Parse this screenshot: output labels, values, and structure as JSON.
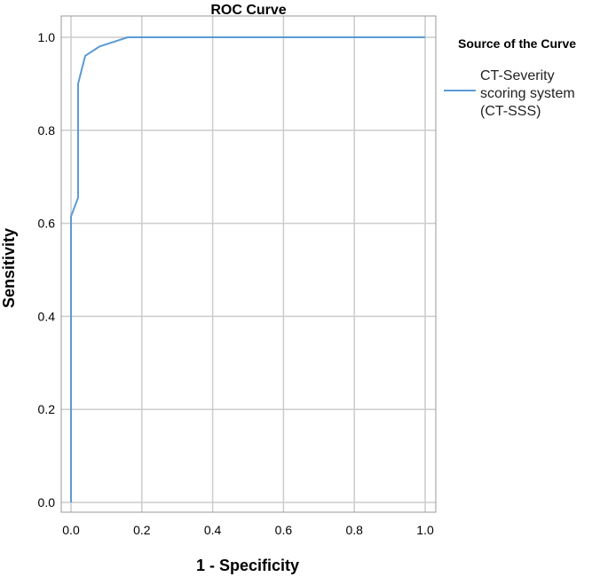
{
  "chart_data": {
    "type": "line",
    "title": "ROC Curve",
    "xlabel": "1 - Specificity",
    "ylabel": "Sensitivity",
    "xlim": [
      0,
      1
    ],
    "ylim": [
      0,
      1
    ],
    "x_ticks": [
      "0.0",
      "0.2",
      "0.4",
      "0.6",
      "0.8",
      "1.0"
    ],
    "y_ticks": [
      "0.0",
      "0.2",
      "0.4",
      "0.6",
      "0.8",
      "1.0"
    ],
    "grid": true,
    "legend": {
      "title": "Source of the Curve",
      "position": "right",
      "entries": [
        "CT-Severity",
        "scoring system",
        "(CT-SSS)"
      ]
    },
    "series": [
      {
        "name": "CT-Severity scoring system (CT-SSS)",
        "color": "#5b9bd5",
        "x": [
          0.0,
          0.0,
          0.02,
          0.02,
          0.04,
          0.08,
          0.16,
          1.0
        ],
        "y": [
          0.0,
          0.615,
          0.655,
          0.9,
          0.96,
          0.98,
          1.0,
          1.0
        ]
      }
    ]
  }
}
